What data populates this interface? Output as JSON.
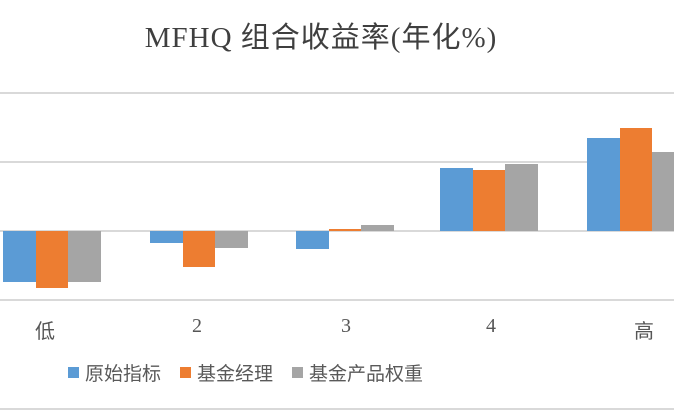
{
  "chart_title": "MFHQ 组合收益率(年化%)",
  "chart_data": {
    "type": "bar",
    "title": "MFHQ 组合收益率(年化%)",
    "categories": [
      "低",
      "2",
      "3",
      "4",
      "高"
    ],
    "series": [
      {
        "name": "原始指标",
        "color": "#5B9BD5",
        "values": [
          -0.74,
          -0.17,
          -0.26,
          0.91,
          1.35
        ]
      },
      {
        "name": "基金经理",
        "color": "#ED7D31",
        "values": [
          -0.83,
          -0.52,
          0.02,
          0.88,
          1.49
        ]
      },
      {
        "name": "基金产品权重",
        "color": "#A5A5A5",
        "values": [
          -0.74,
          -0.24,
          0.08,
          0.97,
          1.15
        ]
      }
    ],
    "xlabel": "",
    "ylabel": "",
    "ylim": [
      -1,
      2
    ],
    "grid": true,
    "legend_position": "bottom",
    "value_units": "gridline intervals (y-axis tick labels are cropped out of the screenshot)"
  },
  "colors": {
    "gridline": "#d9d9d9",
    "title_text": "#3f3f3f",
    "axis_text": "#565656",
    "legend_text": "#595959",
    "background": "#ffffff"
  }
}
